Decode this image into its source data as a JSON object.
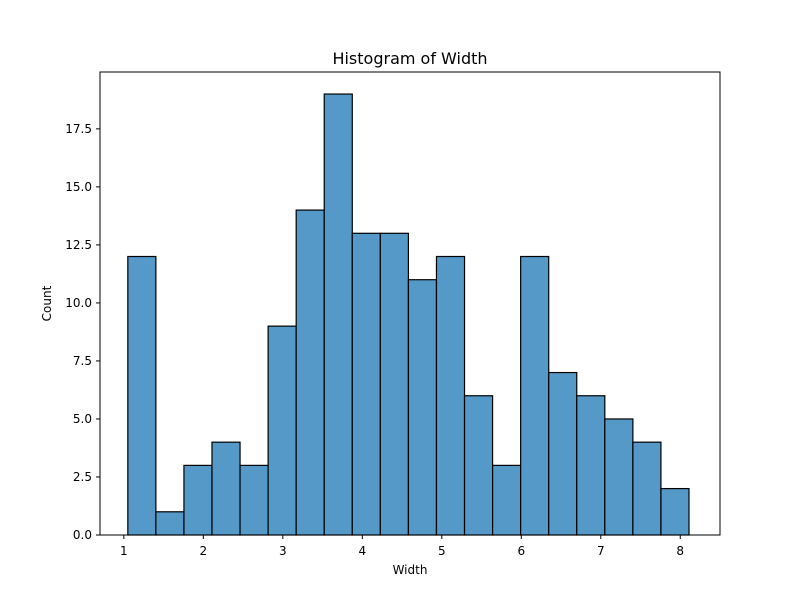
{
  "chart_data": {
    "type": "bar",
    "title": "Histogram of Width",
    "xlabel": "Width",
    "ylabel": "Count",
    "bar_color": "#5499c7",
    "edge_color": "#000000",
    "bin_start": 1.05,
    "bin_width": 0.353,
    "values": [
      12,
      1,
      3,
      4,
      3,
      9,
      14,
      19,
      13,
      13,
      11,
      12,
      6,
      3,
      12,
      7,
      6,
      5,
      4,
      2
    ],
    "xlim": [
      0.7,
      8.5
    ],
    "ylim": [
      0,
      19.95
    ],
    "xticks": [
      1,
      2,
      3,
      4,
      5,
      6,
      7,
      8
    ],
    "yticks": [
      0.0,
      2.5,
      5.0,
      7.5,
      10.0,
      12.5,
      15.0,
      17.5
    ],
    "ytick_labels": [
      "0.0",
      "2.5",
      "5.0",
      "7.5",
      "10.0",
      "12.5",
      "15.0",
      "17.5"
    ],
    "grid": false
  }
}
